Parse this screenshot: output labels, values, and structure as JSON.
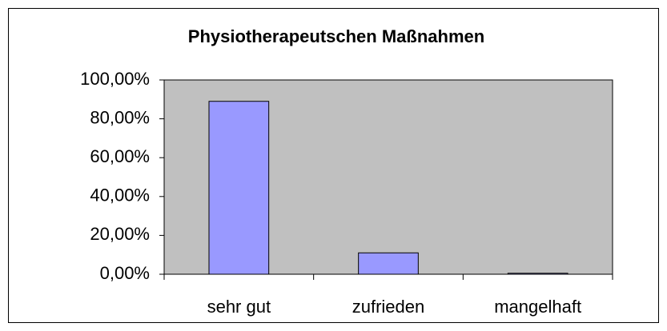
{
  "chart_data": {
    "type": "bar",
    "title": "Physiotherapeutschen Maßnahmen",
    "categories": [
      "sehr gut",
      "zufrieden",
      "mangelhaft"
    ],
    "values": [
      89,
      11,
      0.5
    ],
    "color": "#9999ff",
    "plot_background": "#c0c0c0",
    "ylim": [
      0,
      100
    ],
    "yticks": [
      {
        "value": 0,
        "label": "0,00%"
      },
      {
        "value": 20,
        "label": "20,00%"
      },
      {
        "value": 40,
        "label": "40,00%"
      },
      {
        "value": 60,
        "label": "60,00%"
      },
      {
        "value": 80,
        "label": "80,00%"
      },
      {
        "value": 100,
        "label": "100,00%"
      }
    ],
    "grid": false
  }
}
